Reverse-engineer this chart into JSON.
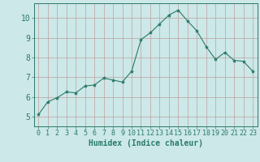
{
  "x": [
    0,
    1,
    2,
    3,
    4,
    5,
    6,
    7,
    8,
    9,
    10,
    11,
    12,
    13,
    14,
    15,
    16,
    17,
    18,
    19,
    20,
    21,
    22,
    23
  ],
  "y": [
    5.1,
    5.75,
    5.95,
    6.25,
    6.2,
    6.55,
    6.6,
    6.95,
    6.85,
    6.75,
    7.3,
    8.9,
    9.25,
    9.7,
    10.15,
    10.4,
    9.85,
    9.35,
    8.55,
    7.9,
    8.25,
    7.85,
    7.8,
    7.3
  ],
  "line_color": "#2a7a6a",
  "marker": "*",
  "marker_size": 3,
  "bg_color": "#cce8e8",
  "grid_color": "#c0a0a0",
  "xlabel": "Humidex (Indice chaleur)",
  "xlim": [
    -0.5,
    23.5
  ],
  "ylim": [
    4.5,
    10.75
  ],
  "yticks": [
    5,
    6,
    7,
    8,
    9,
    10
  ],
  "xticks": [
    0,
    1,
    2,
    3,
    4,
    5,
    6,
    7,
    8,
    9,
    10,
    11,
    12,
    13,
    14,
    15,
    16,
    17,
    18,
    19,
    20,
    21,
    22,
    23
  ],
  "tick_color": "#2a7a6a",
  "label_color": "#2a7a6a",
  "axis_color": "#2a7a6a",
  "tick_fontsize": 6,
  "xlabel_fontsize": 7
}
